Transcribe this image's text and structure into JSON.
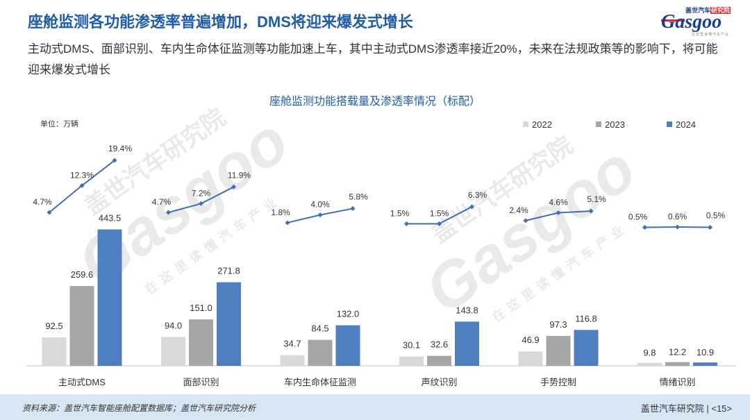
{
  "header": {
    "title": "座舱监测各功能渗透率普遍增加，DMS将迎来爆发式增长",
    "subtitle": "主动式DMS、面部识别、车内生命体征监测等功能加速上车，其中主动式DMS渗透率接近20%，未来在法规政策等的影响下，将可能迎来爆发式增长"
  },
  "logo": {
    "cn_prefix": "盖世汽车",
    "cn_highlight": "研究院",
    "en": "Gasgoo",
    "tagline": "在这里读懂汽车产业"
  },
  "watermark": {
    "cn": "盖世汽车研究院",
    "en": "Gasgoo",
    "tagline": "在这里读懂汽车产业"
  },
  "chart_data": {
    "type": "bar",
    "title": "座舱监测功能搭载量及渗透率情况（标配）",
    "unit_label": "单位：万辆",
    "categories": [
      "主动式DMS",
      "面部识别",
      "车内生命体征监测",
      "声纹识别",
      "手势控制",
      "情绪识别"
    ],
    "series": [
      {
        "name": "2022",
        "color": "#d9d9d9",
        "values": [
          92.5,
          94.0,
          34.7,
          30.1,
          46.9,
          9.8
        ]
      },
      {
        "name": "2023",
        "color": "#a6a6a6",
        "values": [
          259.6,
          151.0,
          84.5,
          32.6,
          97.3,
          12.2
        ]
      },
      {
        "name": "2024",
        "color": "#4f7fc0",
        "values": [
          443.5,
          271.8,
          132.0,
          143.8,
          116.8,
          10.9
        ]
      }
    ],
    "penetration_rate": {
      "color": "#3f6fb6",
      "values": [
        [
          4.7,
          12.3,
          19.4
        ],
        [
          4.7,
          7.2,
          11.9
        ],
        [
          1.8,
          4.0,
          5.8
        ],
        [
          1.5,
          1.5,
          6.3
        ],
        [
          2.4,
          4.6,
          5.1
        ],
        [
          0.5,
          0.6,
          0.5
        ]
      ]
    },
    "legend_position": "top-right",
    "grid": false
  },
  "footer": {
    "source": "资料来源：盖世汽车智能座舱配置数据库；盖世汽车研究院分析",
    "brand": "盖世汽车研究院",
    "page": "15"
  }
}
